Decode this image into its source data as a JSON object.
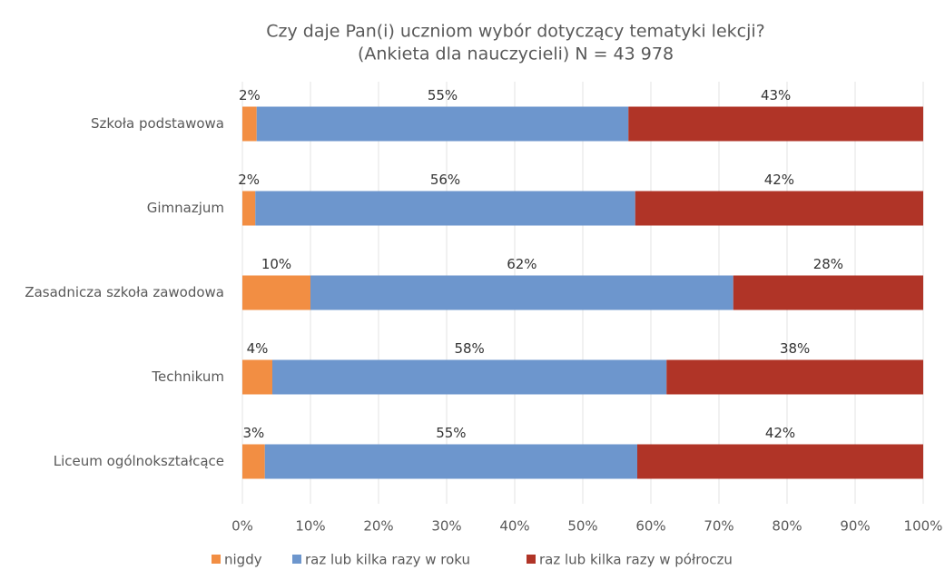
{
  "chart_data": {
    "type": "stacked_barh",
    "title": "Czy daje Pan(i) uczniom wybór dotyczący tematyki lekcji?",
    "subtitle": "(Ankieta dla nauczycieli) N = 43 978",
    "categories": [
      "Szkoła podstawowa",
      "Gimnazjum",
      "Zasadnicza szkoła zawodowa",
      "Technikum",
      "Liceum ogólnokształcące"
    ],
    "series": [
      {
        "name": "nigdy",
        "color": "#f28e43",
        "values": [
          2.1,
          1.9,
          10.0,
          4.4,
          3.3
        ],
        "value_labels": [
          "2%",
          "2%",
          "10%",
          "4%",
          "3%"
        ]
      },
      {
        "name": "raz lub kilka razy w roku",
        "color": "#6d96cd",
        "values": [
          54.6,
          55.8,
          62.1,
          57.9,
          54.7
        ],
        "value_labels": [
          "55%",
          "56%",
          "62%",
          "58%",
          "55%"
        ]
      },
      {
        "name": "raz lub kilka razy w półroczu",
        "color": "#b03427",
        "values": [
          43.3,
          42.3,
          27.9,
          37.7,
          42.0
        ],
        "value_labels": [
          "43%",
          "42%",
          "28%",
          "38%",
          "42%"
        ]
      }
    ],
    "xlim": [
      0,
      100
    ],
    "xticks": [
      {
        "value": 0,
        "label": "0%"
      },
      {
        "value": 10,
        "label": "10%"
      },
      {
        "value": 20,
        "label": "20%"
      },
      {
        "value": 30,
        "label": "30%"
      },
      {
        "value": 40,
        "label": "40%"
      },
      {
        "value": 50,
        "label": "50%"
      },
      {
        "value": 60,
        "label": "60%"
      },
      {
        "value": 70,
        "label": "70%"
      },
      {
        "value": 80,
        "label": "80%"
      },
      {
        "value": 90,
        "label": "90%"
      },
      {
        "value": 100,
        "label": "100%"
      }
    ],
    "grid": true,
    "legend": "bottom"
  }
}
